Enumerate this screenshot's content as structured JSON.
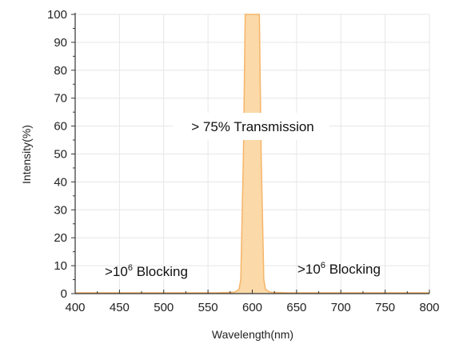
{
  "chart_data": {
    "type": "area",
    "xlabel": "Wavelength(nm)",
    "ylabel": "Intensity(%)",
    "xlim": [
      400,
      800
    ],
    "ylim": [
      0,
      100
    ],
    "xticks": [
      400,
      450,
      500,
      550,
      600,
      650,
      700,
      750,
      800
    ],
    "yticks": [
      0,
      10,
      20,
      30,
      40,
      50,
      60,
      70,
      80,
      90,
      100
    ],
    "grid": true,
    "colors": {
      "fill": "#fbd9a8",
      "line": "#f5b56a",
      "axis": "#333333",
      "grid": "#e6e6e6"
    },
    "series": [
      {
        "x": [
          400,
          560,
          580,
          585,
          587,
          590,
          592,
          608,
          610,
          613,
          615,
          620,
          640,
          800
        ],
        "y": [
          0.3,
          0.3,
          0.5,
          1.5,
          5,
          50,
          100,
          100,
          50,
          5,
          1.5,
          0.5,
          0.3,
          0.3
        ]
      }
    ],
    "annotations": {
      "transmission": "> 75% Transmission",
      "blocking_left": {
        "prefix": ">10",
        "sup": "6",
        "suffix": " Blocking"
      },
      "blocking_right": {
        "prefix": ">10",
        "sup": "6",
        "suffix": " Blocking"
      }
    }
  }
}
